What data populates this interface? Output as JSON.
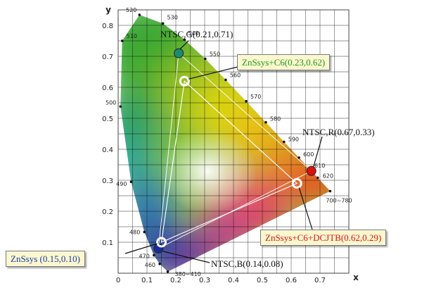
{
  "chart_data": {
    "type": "scatter",
    "title": "",
    "xlabel": "x",
    "ylabel": "y",
    "xlim": [
      0,
      0.8
    ],
    "ylim": [
      0,
      0.85
    ],
    "x_ticks": [
      "0",
      "0.1",
      "0.2",
      "0.3",
      "0.4",
      "0.5",
      "0.6",
      "0.7"
    ],
    "y_ticks": [
      "0.1",
      "0.2",
      "0.3",
      "0.4",
      "0.5",
      "0.6",
      "0.7",
      "0.8"
    ],
    "grid": true,
    "spectral_locus": [
      {
        "label": "380~410",
        "x": 0.172,
        "y": 0.005
      },
      {
        "label": "460",
        "x": 0.144,
        "y": 0.03
      },
      {
        "label": "470",
        "x": 0.124,
        "y": 0.058
      },
      {
        "label": "480",
        "x": 0.091,
        "y": 0.133
      },
      {
        "label": "490",
        "x": 0.045,
        "y": 0.295
      },
      {
        "label": "500",
        "x": 0.008,
        "y": 0.538
      },
      {
        "label": "510",
        "x": 0.014,
        "y": 0.75
      },
      {
        "label": "520",
        "x": 0.074,
        "y": 0.834
      },
      {
        "label": "530",
        "x": 0.155,
        "y": 0.806
      },
      {
        "label": "540",
        "x": 0.23,
        "y": 0.754
      },
      {
        "label": "550",
        "x": 0.302,
        "y": 0.692
      },
      {
        "label": "560",
        "x": 0.373,
        "y": 0.624
      },
      {
        "label": "570",
        "x": 0.444,
        "y": 0.555
      },
      {
        "label": "580",
        "x": 0.512,
        "y": 0.487
      },
      {
        "label": "590",
        "x": 0.575,
        "y": 0.424
      },
      {
        "label": "600",
        "x": 0.627,
        "y": 0.373
      },
      {
        "label": "610",
        "x": 0.666,
        "y": 0.334
      },
      {
        "label": "620",
        "x": 0.692,
        "y": 0.308
      },
      {
        "label": "700~780",
        "x": 0.735,
        "y": 0.265
      }
    ],
    "series": [
      {
        "name": "NTSC",
        "points": [
          {
            "label": "NTSC,G(0.21,0.71)",
            "x": 0.21,
            "y": 0.71,
            "color": "#1e8a6e"
          },
          {
            "label": "NTSC,R(0.67,0.33)",
            "x": 0.67,
            "y": 0.33,
            "color": "#e01010"
          },
          {
            "label": "NTSC,B(0.14,0.08)",
            "x": 0.14,
            "y": 0.08,
            "color": "#1a2a9a"
          }
        ]
      },
      {
        "name": "",
        "points": [
          {
            "label": "ZnSsys+C6(0.23,0.62)",
            "x": 0.23,
            "y": 0.62,
            "text_color": "#1e9a1e"
          },
          {
            "label": "ZnSsys+C6+DCJTB(0.62,0.29)",
            "x": 0.62,
            "y": 0.29,
            "text_color": "#e01010"
          },
          {
            "label": "ZnSsys (0.15,0.10)",
            "x": 0.15,
            "y": 0.1,
            "text_color": "#1a3aa8"
          }
        ]
      }
    ]
  }
}
